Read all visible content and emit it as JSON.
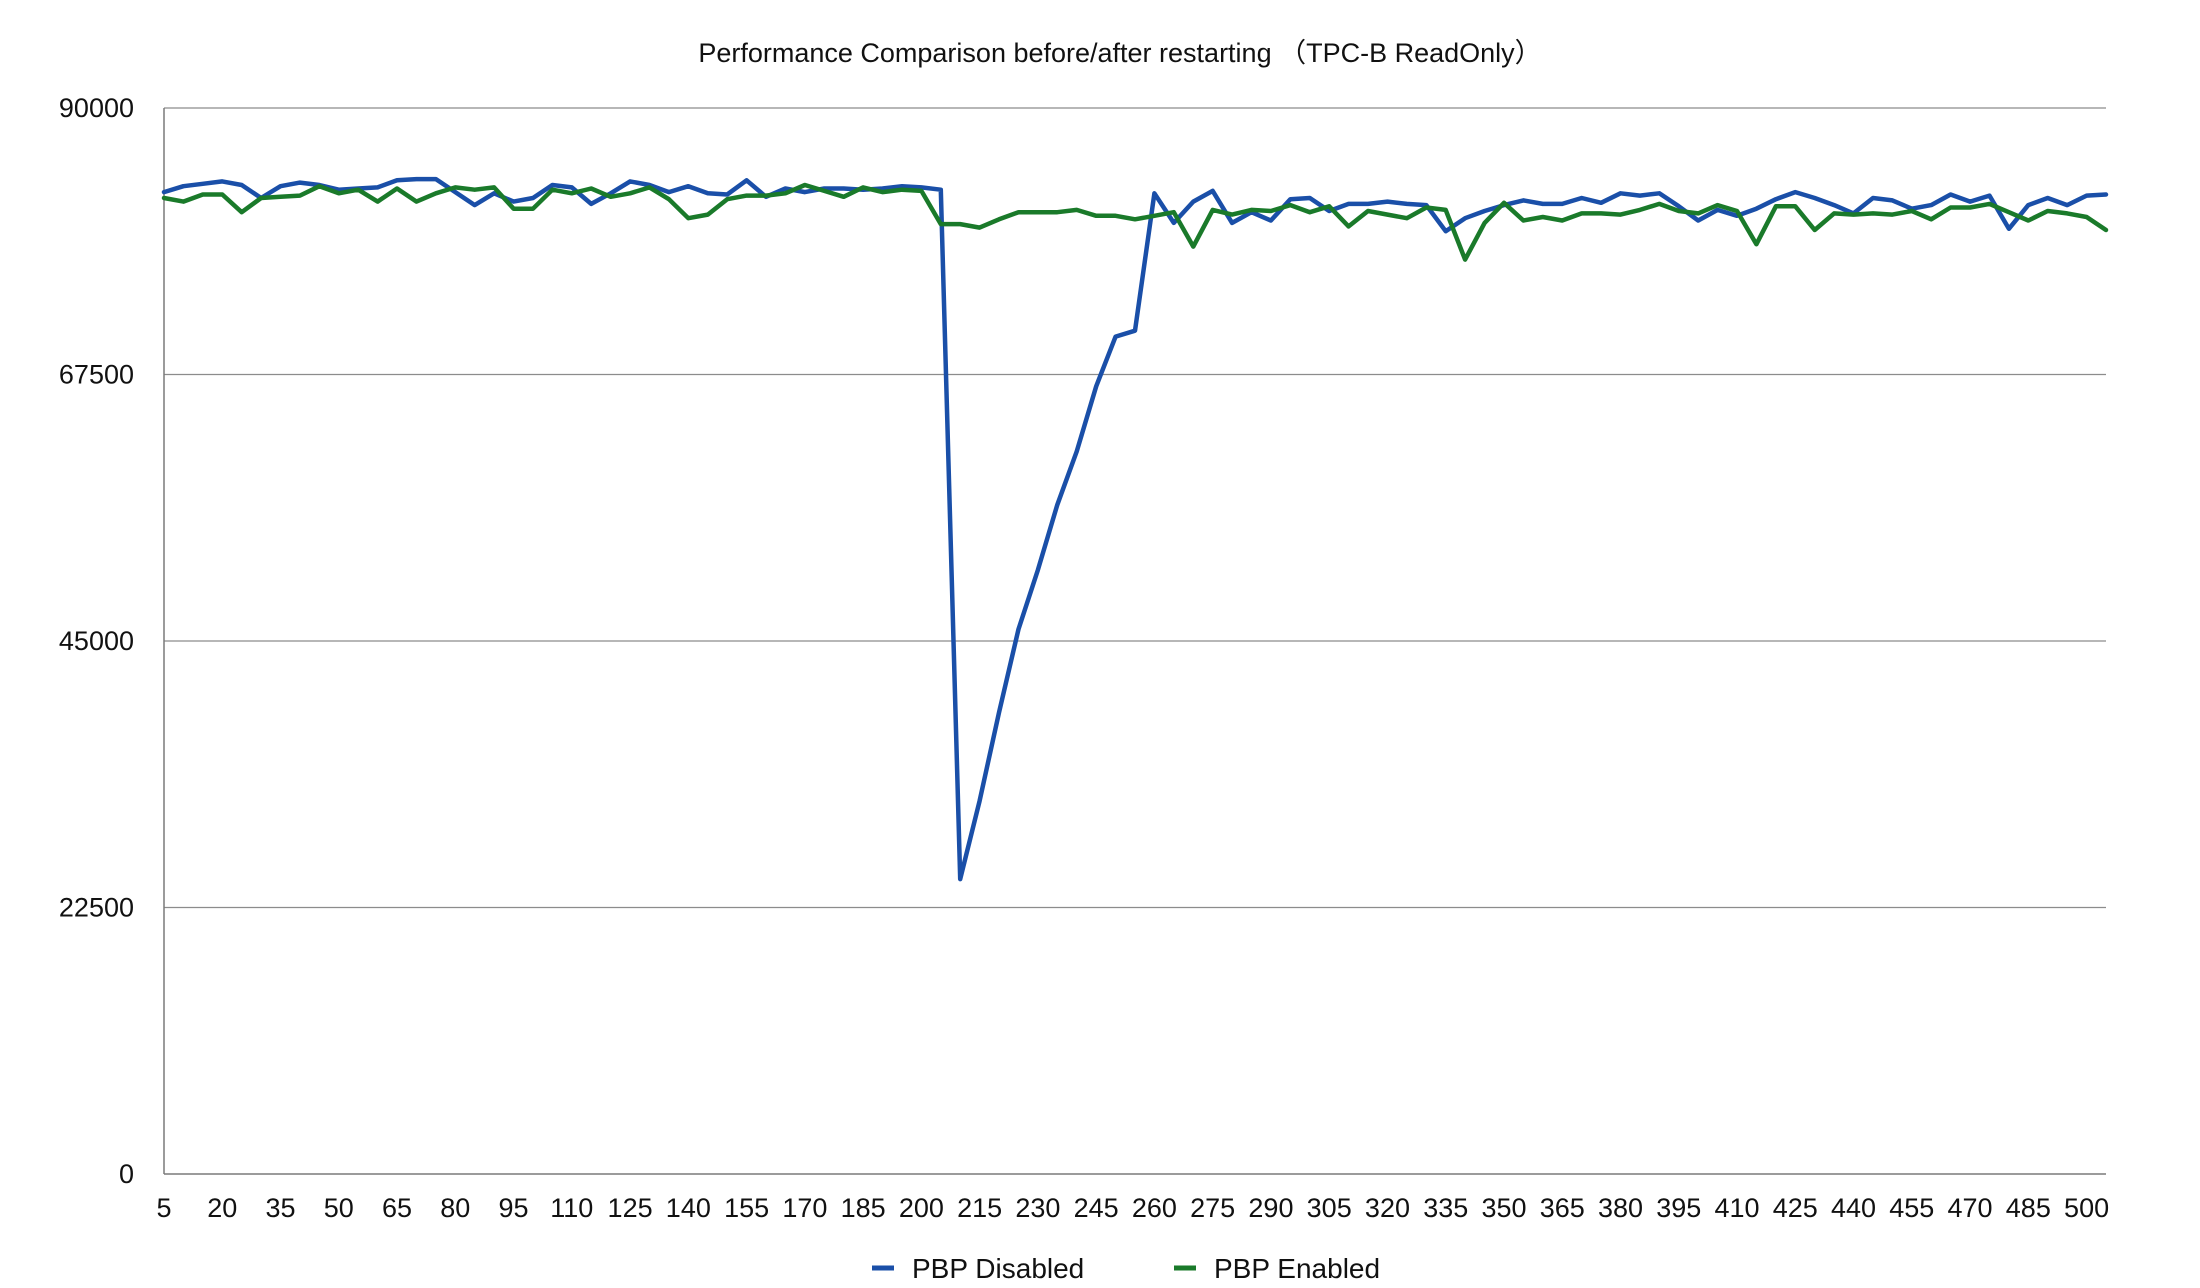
{
  "chart_data": {
    "type": "line",
    "title": "Performance Comparison before/after restarting （TPC-B ReadOnly）",
    "xlabel": "",
    "ylabel": "",
    "ylim": [
      0,
      90000
    ],
    "yticks": [
      0,
      22500,
      45000,
      67500,
      90000
    ],
    "xticks": [
      5,
      20,
      35,
      50,
      65,
      80,
      95,
      110,
      125,
      140,
      155,
      170,
      185,
      200,
      215,
      230,
      245,
      260,
      275,
      290,
      305,
      320,
      335,
      350,
      365,
      380,
      395,
      410,
      425,
      440,
      455,
      470,
      485,
      500
    ],
    "grid": true,
    "legend_position": "bottom",
    "x": [
      5,
      10,
      15,
      20,
      25,
      30,
      35,
      40,
      45,
      50,
      55,
      60,
      65,
      70,
      75,
      80,
      85,
      90,
      95,
      100,
      105,
      110,
      115,
      120,
      125,
      130,
      135,
      140,
      145,
      150,
      155,
      160,
      165,
      170,
      175,
      180,
      185,
      190,
      195,
      200,
      205,
      210,
      215,
      220,
      225,
      230,
      235,
      240,
      245,
      250,
      255,
      260,
      265,
      270,
      275,
      280,
      285,
      290,
      295,
      300,
      305,
      310,
      315,
      320,
      325,
      330,
      335,
      340,
      345,
      350,
      355,
      360,
      365,
      370,
      375,
      380,
      385,
      390,
      395,
      400,
      405,
      410,
      415,
      420,
      425,
      430,
      435,
      440,
      445,
      450,
      455,
      460,
      465,
      470,
      475,
      480,
      485,
      490,
      495,
      500,
      505
    ],
    "series": [
      {
        "name": "PBP Disabled",
        "color": "#1a4fa8",
        "values": [
          82900,
          83400,
          83600,
          83800,
          83500,
          82400,
          83400,
          83700,
          83500,
          83100,
          83200,
          83300,
          83900,
          84000,
          84000,
          82900,
          81800,
          82800,
          82100,
          82400,
          83500,
          83300,
          81900,
          82800,
          83800,
          83500,
          82900,
          83400,
          82800,
          82700,
          83900,
          82500,
          83200,
          82900,
          83200,
          83200,
          83100,
          83200,
          83400,
          83300,
          83100,
          24900,
          31500,
          39000,
          46000,
          51000,
          56500,
          61000,
          66500,
          70700,
          71200,
          82800,
          80300,
          82100,
          83000,
          80300,
          81200,
          80500,
          82300,
          82400,
          81300,
          81900,
          81900,
          82100,
          81900,
          81800,
          79600,
          80700,
          81300,
          81800,
          82200,
          81900,
          81900,
          82400,
          82000,
          82800,
          82600,
          82800,
          81700,
          80500,
          81400,
          80900,
          81500,
          82300,
          82900,
          82400,
          81800,
          81100,
          82400,
          82200,
          81500,
          81800,
          82700,
          82100,
          82600,
          79800,
          81800,
          82400,
          81800,
          82600,
          82700
        ]
      },
      {
        "name": "PBP Enabled",
        "color": "#1a7a2a",
        "values": [
          82400,
          82100,
          82700,
          82700,
          81200,
          82400,
          82500,
          82600,
          83400,
          82800,
          83100,
          82100,
          83200,
          82100,
          82800,
          83300,
          83100,
          83300,
          81500,
          81500,
          83100,
          82800,
          83200,
          82500,
          82800,
          83300,
          82300,
          80700,
          81000,
          82300,
          82600,
          82600,
          82800,
          83500,
          83000,
          82500,
          83300,
          82900,
          83100,
          83000,
          80200,
          80200,
          79900,
          80600,
          81200,
          81200,
          81200,
          81400,
          80900,
          80900,
          80600,
          80900,
          81200,
          78300,
          81400,
          81000,
          81400,
          81300,
          81800,
          81200,
          81700,
          80000,
          81300,
          81000,
          80700,
          81600,
          81400,
          77200,
          80300,
          82000,
          80500,
          80800,
          80500,
          81100,
          81100,
          81000,
          81400,
          81900,
          81300,
          81100,
          81800,
          81300,
          78500,
          81700,
          81700,
          79700,
          81100,
          81000,
          81100,
          81000,
          81300,
          80600,
          81600,
          81600,
          81900,
          81200,
          80500,
          81300,
          81100,
          80800,
          79700
        ]
      }
    ]
  }
}
